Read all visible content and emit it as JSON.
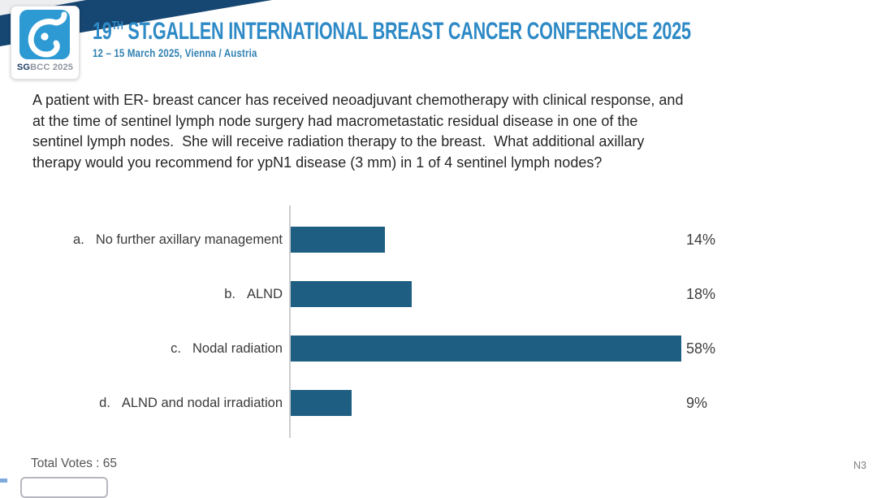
{
  "header": {
    "logo": {
      "sg": "SG",
      "bcc": "BCC 2025",
      "tile_color": "#2e9ad4",
      "icon": "sgbcc-breast-logo-icon"
    },
    "title_prefix": "19",
    "title_sup": "TH",
    "title_rest": " ST.GALLEN INTERNATIONAL BREAST CANCER CONFERENCE 2025",
    "subtitle": "12 – 15 March 2025, Vienna / Austria",
    "title_color": "#2e8ac6",
    "band_color": "#164672"
  },
  "question": {
    "lines": [
      "A patient with ER- breast cancer has received neoadjuvant chemotherapy with clinical response, and",
      "at the time of sentinel lymph node surgery had macrometastatic residual disease in one of the",
      "sentinel lymph nodes.  She will receive radiation therapy to the breast.  What additional axillary",
      "therapy would you recommend for ypN1 disease (3 mm) in 1 of 4 sentinel lymph nodes?"
    ]
  },
  "chart_data": {
    "type": "bar",
    "orientation": "horizontal",
    "title": "",
    "categories": [
      "a. No further axillary management",
      "b. ALND",
      "c. Nodal radiation",
      "d. ALND and nodal irradiation"
    ],
    "values": [
      14,
      18,
      58,
      9
    ],
    "value_labels": [
      "14%",
      "18%",
      "58%",
      "9%"
    ],
    "rows": [
      {
        "letter": "a.",
        "label": "No further axillary management",
        "value": 14,
        "display": "14%"
      },
      {
        "letter": "b.",
        "label": "ALND",
        "value": 18,
        "display": "18%"
      },
      {
        "letter": "c.",
        "label": "Nodal radiation",
        "value": 58,
        "display": "58%"
      },
      {
        "letter": "d.",
        "label": "ALND and nodal irradiation",
        "value": 9,
        "display": "9%"
      }
    ],
    "unit": "percent",
    "xlim": [
      0,
      60
    ],
    "grid": false,
    "legend": false,
    "bar_color": "#1e5e82",
    "axis_color": "#caccce",
    "total_votes": 65
  },
  "footer": {
    "total_votes_label": "Total Votes : 65",
    "slide_code": "N3"
  }
}
